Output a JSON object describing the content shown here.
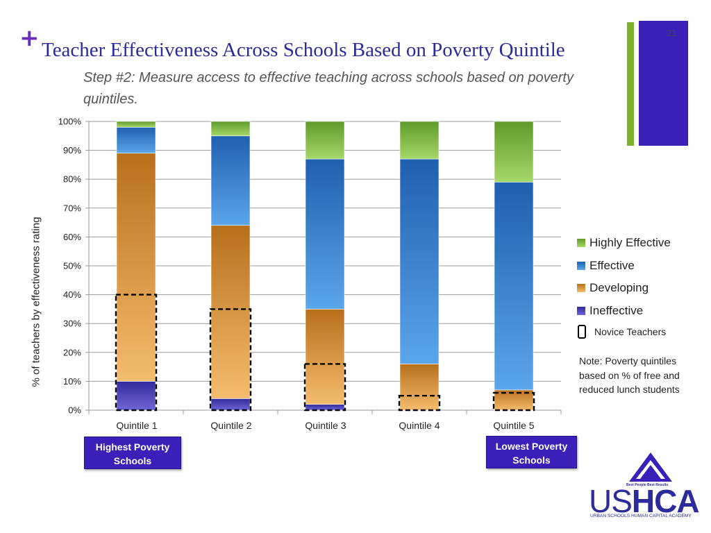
{
  "slide": {
    "plus": "+",
    "title": "Teacher Effectiveness Across Schools Based on Poverty Quintile",
    "subtitle": "Step #2: Measure access to effective teaching across schools based on poverty quintiles.",
    "slide_number": "21"
  },
  "colors": {
    "ineffective": "#4b3fbf",
    "developing": "#e3952a",
    "effective": "#2f7dd0",
    "highly_effective": "#8ac54a",
    "accent_purple": "#3a1fb8",
    "accent_green": "#7ab227"
  },
  "chart_data": {
    "type": "bar",
    "stacked": true,
    "categories": [
      "Quintile 1",
      "Quintile 2",
      "Quintile 3",
      "Quintile 4",
      "Quintile 5"
    ],
    "series": [
      {
        "name": "Ineffective",
        "values": [
          10,
          4,
          2,
          0,
          0
        ]
      },
      {
        "name": "Developing",
        "values": [
          79,
          60,
          33,
          16,
          7
        ]
      },
      {
        "name": "Effective",
        "values": [
          9,
          31,
          52,
          71,
          72
        ]
      },
      {
        "name": "Highly Effective",
        "values": [
          2,
          5,
          13,
          13,
          21
        ]
      }
    ],
    "novice_teachers": [
      40,
      35,
      16,
      5,
      6
    ],
    "ylabel": "% of teachers by effectiveness rating",
    "xlabel": "",
    "ylim": [
      0,
      100
    ],
    "yticks": [
      "0%",
      "10%",
      "20%",
      "30%",
      "40%",
      "50%",
      "60%",
      "70%",
      "80%",
      "90%",
      "100%"
    ],
    "legend": [
      "Highly Effective",
      "Effective",
      "Developing",
      "Ineffective"
    ],
    "novice_label": "Novice Teachers",
    "note": "Note: Poverty quintiles based on % of free and reduced lunch students",
    "grid": true
  },
  "callouts": {
    "highest": "Highest Poverty Schools",
    "lowest": "Lowest Poverty Schools"
  },
  "logo": {
    "tagline": "Best People Best Results",
    "word_a": "US",
    "word_b": "HCA",
    "subtitle": "URBAN SCHOOLS HUMAN CAPITAL ACADEMY"
  }
}
